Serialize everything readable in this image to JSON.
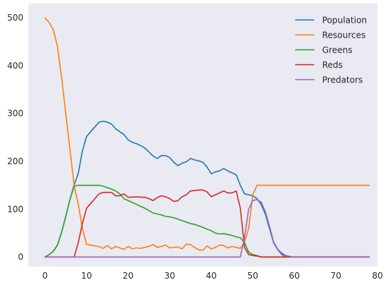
{
  "chart_data": {
    "type": "line",
    "title": "",
    "xlabel": "",
    "ylabel": "",
    "xlim": [
      -4,
      80
    ],
    "ylim": [
      -20,
      530
    ],
    "xticks": [
      0,
      10,
      20,
      30,
      40,
      50,
      60,
      70,
      80
    ],
    "yticks": [
      0,
      100,
      200,
      300,
      400,
      500
    ],
    "grid": false,
    "legend_position": "top-right",
    "series": [
      {
        "name": "Population",
        "color": "#1f77b4",
        "x": [
          0,
          1,
          2,
          3,
          4,
          5,
          6,
          7,
          8,
          9,
          10,
          11,
          12,
          13,
          14,
          15,
          16,
          17,
          18,
          19,
          20,
          21,
          22,
          23,
          24,
          25,
          26,
          27,
          28,
          29,
          30,
          31,
          32,
          33,
          34,
          35,
          36,
          37,
          38,
          39,
          40,
          41,
          42,
          43,
          44,
          45,
          46,
          47,
          48,
          49,
          50,
          51,
          52,
          53,
          54,
          55,
          56,
          57,
          58,
          59,
          60,
          61,
          62,
          63,
          64,
          65,
          66,
          67,
          68,
          69,
          70,
          71,
          72,
          73,
          74,
          75,
          76,
          77,
          78
        ],
        "y": [
          0,
          5,
          12,
          25,
          52,
          85,
          120,
          150,
          175,
          222,
          252,
          262,
          272,
          282,
          284,
          282,
          278,
          268,
          262,
          256,
          245,
          240,
          237,
          233,
          228,
          220,
          211,
          206,
          212,
          212,
          208,
          198,
          191,
          196,
          199,
          206,
          203,
          201,
          198,
          188,
          174,
          178,
          180,
          185,
          180,
          176,
          172,
          150,
          132,
          130,
          128,
          122,
          110,
          90,
          60,
          30,
          15,
          5,
          0,
          0,
          0,
          0,
          0,
          0,
          0,
          0,
          0,
          0,
          0,
          0,
          0,
          0,
          0,
          0,
          0,
          0,
          0,
          0,
          0
        ]
      },
      {
        "name": "Resources",
        "color": "#ff7f0e",
        "x": [
          0,
          1,
          2,
          3,
          4,
          5,
          6,
          7,
          8,
          9,
          10,
          11,
          12,
          13,
          14,
          15,
          16,
          17,
          18,
          19,
          20,
          21,
          22,
          23,
          24,
          25,
          26,
          27,
          28,
          29,
          30,
          31,
          32,
          33,
          34,
          35,
          36,
          37,
          38,
          39,
          40,
          41,
          42,
          43,
          44,
          45,
          46,
          47,
          48,
          49,
          50,
          51,
          52,
          53,
          54,
          55,
          56,
          57,
          58,
          59,
          60,
          61,
          62,
          63,
          64,
          65,
          66,
          67,
          68,
          69,
          70,
          71,
          72,
          73,
          74,
          75,
          76,
          77,
          78
        ],
        "y": [
          500,
          490,
          475,
          440,
          375,
          300,
          225,
          150,
          110,
          60,
          26,
          25,
          23,
          22,
          18,
          24,
          17,
          22,
          19,
          16,
          22,
          17,
          19,
          18,
          20,
          22,
          26,
          20,
          22,
          25,
          19,
          20,
          21,
          17,
          27,
          26,
          20,
          15,
          14,
          23,
          17,
          20,
          25,
          24,
          19,
          22,
          20,
          18,
          30,
          60,
          130,
          150,
          150,
          150,
          150,
          150,
          150,
          150,
          150,
          150,
          150,
          150,
          150,
          150,
          150,
          150,
          150,
          150,
          150,
          150,
          150,
          150,
          150,
          150,
          150,
          150,
          150,
          150,
          150
        ]
      },
      {
        "name": "Greens",
        "color": "#2ca02c",
        "x": [
          0,
          1,
          2,
          3,
          4,
          5,
          6,
          7,
          8,
          9,
          10,
          11,
          12,
          13,
          14,
          15,
          16,
          17,
          18,
          19,
          20,
          21,
          22,
          23,
          24,
          25,
          26,
          27,
          28,
          29,
          30,
          31,
          32,
          33,
          34,
          35,
          36,
          37,
          38,
          39,
          40,
          41,
          42,
          43,
          44,
          45,
          46,
          47,
          48,
          49,
          50,
          51,
          52,
          53,
          54,
          55,
          56,
          57,
          58,
          59,
          60,
          61,
          62,
          63,
          64,
          65,
          66,
          67,
          68,
          69,
          70,
          71,
          72,
          73,
          74,
          75,
          76,
          77,
          78
        ],
        "y": [
          0,
          5,
          12,
          25,
          52,
          85,
          120,
          148,
          150,
          150,
          150,
          150,
          150,
          150,
          148,
          145,
          142,
          138,
          132,
          122,
          118,
          114,
          110,
          106,
          102,
          97,
          92,
          90,
          88,
          85,
          84,
          82,
          79,
          76,
          73,
          70,
          68,
          65,
          62,
          58,
          55,
          50,
          48,
          49,
          47,
          45,
          42,
          40,
          30,
          10,
          5,
          3,
          0,
          0,
          0,
          0,
          0,
          0,
          0,
          0,
          0,
          0,
          0,
          0,
          0,
          0,
          0,
          0,
          0,
          0,
          0,
          0,
          0,
          0,
          0,
          0,
          0,
          0,
          0
        ]
      },
      {
        "name": "Reds",
        "color": "#d62728",
        "x": [
          0,
          1,
          2,
          3,
          4,
          5,
          6,
          7,
          8,
          9,
          10,
          11,
          12,
          13,
          14,
          15,
          16,
          17,
          18,
          19,
          20,
          21,
          22,
          23,
          24,
          25,
          26,
          27,
          28,
          29,
          30,
          31,
          32,
          33,
          34,
          35,
          36,
          37,
          38,
          39,
          40,
          41,
          42,
          43,
          44,
          45,
          46,
          47,
          48,
          49,
          50,
          51,
          52,
          53,
          54,
          55,
          56,
          57,
          58,
          59,
          60,
          61,
          62,
          63,
          64,
          65,
          66,
          67,
          68,
          69,
          70,
          71,
          72,
          73,
          74,
          75,
          76,
          77,
          78
        ],
        "y": [
          0,
          0,
          0,
          0,
          0,
          0,
          0,
          0,
          30,
          70,
          102,
          112,
          122,
          132,
          135,
          135,
          135,
          128,
          128,
          132,
          125,
          125,
          126,
          125,
          125,
          122,
          118,
          124,
          128,
          126,
          122,
          116,
          118,
          126,
          130,
          138,
          139,
          140,
          140,
          136,
          126,
          130,
          134,
          138,
          134,
          134,
          138,
          102,
          20,
          5,
          3,
          2,
          0,
          0,
          0,
          0,
          0,
          0,
          0,
          0,
          0,
          0,
          0,
          0,
          0,
          0,
          0,
          0,
          0,
          0,
          0,
          0,
          0,
          0,
          0,
          0,
          0,
          0,
          0
        ]
      },
      {
        "name": "Predators",
        "color": "#9467bd",
        "x": [
          0,
          1,
          2,
          3,
          4,
          5,
          6,
          7,
          8,
          9,
          10,
          11,
          12,
          13,
          14,
          15,
          16,
          17,
          18,
          19,
          20,
          21,
          22,
          23,
          24,
          25,
          26,
          27,
          28,
          29,
          30,
          31,
          32,
          33,
          34,
          35,
          36,
          37,
          38,
          39,
          40,
          41,
          42,
          43,
          44,
          45,
          46,
          47,
          48,
          49,
          50,
          51,
          52,
          53,
          54,
          55,
          56,
          57,
          58,
          59,
          60,
          61,
          62,
          63,
          64,
          65,
          66,
          67,
          68,
          69,
          70,
          71,
          72,
          73,
          74,
          75,
          76,
          77,
          78
        ],
        "y": [
          0,
          0,
          0,
          0,
          0,
          0,
          0,
          0,
          0,
          0,
          0,
          0,
          0,
          0,
          0,
          0,
          0,
          0,
          0,
          0,
          0,
          0,
          0,
          0,
          0,
          0,
          0,
          0,
          0,
          0,
          0,
          0,
          0,
          0,
          0,
          0,
          0,
          0,
          0,
          0,
          0,
          0,
          0,
          0,
          0,
          0,
          0,
          0,
          40,
          100,
          118,
          120,
          115,
          95,
          65,
          32,
          16,
          8,
          3,
          1,
          0,
          0,
          0,
          0,
          0,
          0,
          0,
          0,
          0,
          0,
          0,
          0,
          0,
          0,
          0,
          0,
          0,
          0,
          0
        ]
      }
    ]
  },
  "style": {
    "plot_background": "#eaeaf2",
    "page_background": "#ffffff",
    "text_color": "#262626"
  }
}
